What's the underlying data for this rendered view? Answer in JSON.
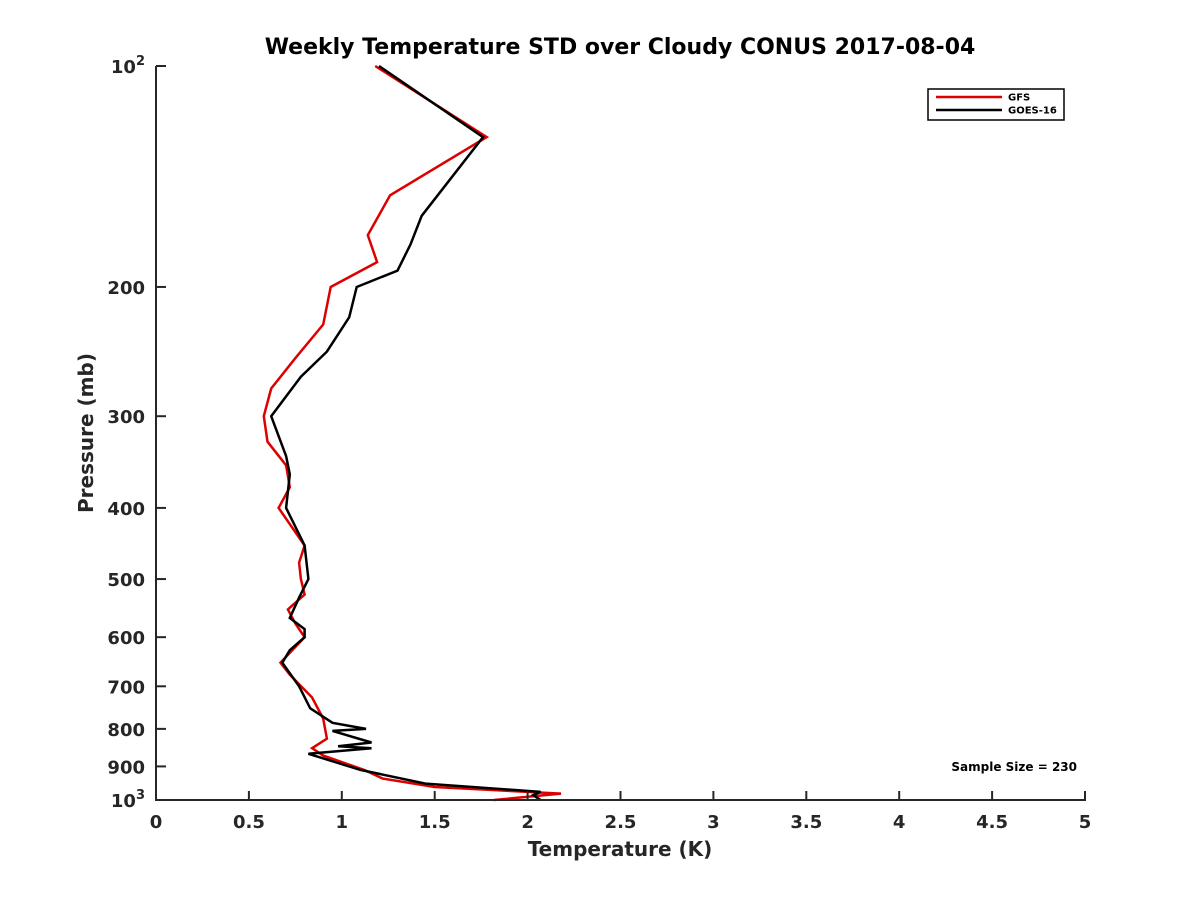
{
  "chart_data": {
    "type": "line",
    "title": "Weekly Temperature STD over Cloudy CONUS 2017-08-04",
    "xlabel": "Temperature (K)",
    "ylabel": "Pressure (mb)",
    "xlim": [
      0,
      5
    ],
    "ylim": [
      100,
      1000
    ],
    "yscale": "log",
    "y_reversed": true,
    "grid": false,
    "legend_position": "top-right",
    "x_ticks": [
      "0",
      "0.5",
      "1",
      "1.5",
      "2",
      "2.5",
      "3",
      "3.5",
      "4",
      "4.5",
      "5"
    ],
    "y_ticks": [
      {
        "value": 100,
        "base": "10",
        "exp": "2"
      },
      {
        "value": 200,
        "label": "200"
      },
      {
        "value": 300,
        "label": "300"
      },
      {
        "value": 400,
        "label": "400"
      },
      {
        "value": 500,
        "label": "500"
      },
      {
        "value": 600,
        "label": "600"
      },
      {
        "value": 700,
        "label": "700"
      },
      {
        "value": 800,
        "label": "800"
      },
      {
        "value": 900,
        "label": "900"
      },
      {
        "value": 1000,
        "base": "10",
        "exp": "3"
      }
    ],
    "annotation": "Sample Size = 230",
    "series": [
      {
        "name": "GFS",
        "color": "#dd0000",
        "points": [
          [
            1.18,
            100
          ],
          [
            1.78,
            125
          ],
          [
            1.26,
            150
          ],
          [
            1.14,
            170
          ],
          [
            1.19,
            185
          ],
          [
            0.94,
            200
          ],
          [
            0.9,
            225
          ],
          [
            0.75,
            250
          ],
          [
            0.62,
            275
          ],
          [
            0.58,
            300
          ],
          [
            0.6,
            325
          ],
          [
            0.7,
            350
          ],
          [
            0.72,
            375
          ],
          [
            0.66,
            400
          ],
          [
            0.8,
            450
          ],
          [
            0.77,
            475
          ],
          [
            0.78,
            500
          ],
          [
            0.8,
            525
          ],
          [
            0.71,
            550
          ],
          [
            0.75,
            575
          ],
          [
            0.8,
            600
          ],
          [
            0.67,
            650
          ],
          [
            0.72,
            675
          ],
          [
            0.84,
            725
          ],
          [
            0.9,
            775
          ],
          [
            0.92,
            825
          ],
          [
            0.84,
            850
          ],
          [
            0.9,
            870
          ],
          [
            1.12,
            910
          ],
          [
            1.22,
            935
          ],
          [
            1.5,
            960
          ],
          [
            2.18,
            980
          ],
          [
            1.82,
            1000
          ]
        ]
      },
      {
        "name": "GOES-16",
        "color": "#000000",
        "points": [
          [
            1.2,
            100
          ],
          [
            1.76,
            125
          ],
          [
            1.43,
            160
          ],
          [
            1.37,
            175
          ],
          [
            1.3,
            190
          ],
          [
            1.08,
            200
          ],
          [
            1.04,
            220
          ],
          [
            0.92,
            245
          ],
          [
            0.78,
            265
          ],
          [
            0.62,
            300
          ],
          [
            0.7,
            340
          ],
          [
            0.72,
            360
          ],
          [
            0.7,
            400
          ],
          [
            0.8,
            450
          ],
          [
            0.82,
            500
          ],
          [
            0.77,
            530
          ],
          [
            0.72,
            565
          ],
          [
            0.8,
            585
          ],
          [
            0.8,
            600
          ],
          [
            0.72,
            625
          ],
          [
            0.68,
            650
          ],
          [
            0.77,
            700
          ],
          [
            0.83,
            750
          ],
          [
            0.95,
            785
          ],
          [
            1.13,
            800
          ],
          [
            0.95,
            805
          ],
          [
            1.16,
            835
          ],
          [
            0.98,
            845
          ],
          [
            1.16,
            850
          ],
          [
            0.82,
            865
          ],
          [
            1.1,
            910
          ],
          [
            1.45,
            950
          ],
          [
            2.07,
            975
          ],
          [
            2.03,
            985
          ],
          [
            2.07,
            1000
          ]
        ]
      }
    ]
  }
}
